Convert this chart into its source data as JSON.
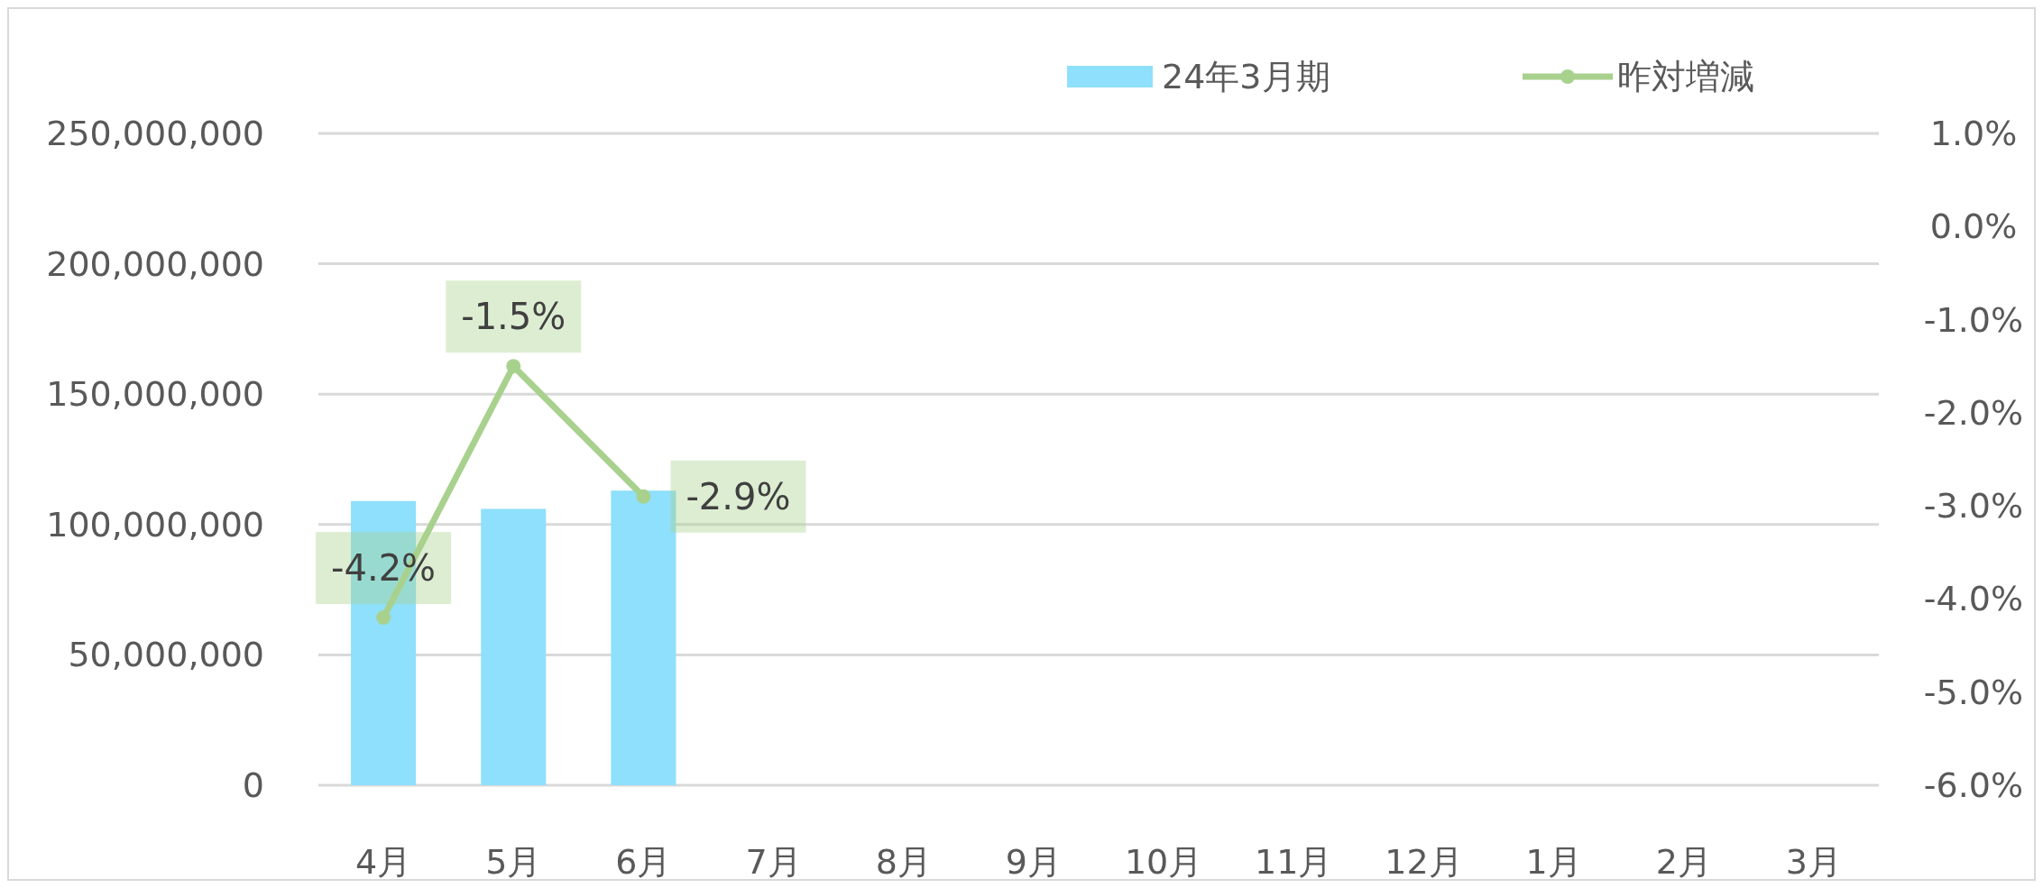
{
  "chart_data": {
    "type": "bar",
    "categories": [
      "4月",
      "5月",
      "6月",
      "7月",
      "8月",
      "9月",
      "10月",
      "11月",
      "12月",
      "1月",
      "2月",
      "3月"
    ],
    "series": [
      {
        "name": "24年3月期",
        "color": "#8ee0fc",
        "values": [
          109000000,
          106000000,
          113000000,
          null,
          null,
          null,
          null,
          null,
          null,
          null,
          null,
          null
        ]
      },
      {
        "name": "昨対増減",
        "type": "line",
        "axis": "y2",
        "color": "#a9d18e",
        "marker": "circle",
        "value_labels": [
          "-4.2%",
          "-1.5%",
          "-2.9%",
          null,
          null,
          null,
          null,
          null,
          null,
          null,
          null,
          null
        ],
        "values": [
          -4.2,
          -1.5,
          -2.9,
          null,
          null,
          null,
          null,
          null,
          null,
          null,
          null,
          null
        ]
      }
    ],
    "ylim": [
      0,
      250000000
    ],
    "yticks": [
      {
        "value": 0,
        "label": "0"
      },
      {
        "value": 50000000,
        "label": "50,000,000"
      },
      {
        "value": 100000000,
        "label": "100,000,000"
      },
      {
        "value": 150000000,
        "label": "150,000,000"
      },
      {
        "value": 200000000,
        "label": "200,000,000"
      },
      {
        "value": 250000000,
        "label": "250,000,000"
      }
    ],
    "y2lim": [
      -6,
      1
    ],
    "y2ticks": [
      {
        "value": -6,
        "label": "-6.0%"
      },
      {
        "value": -5,
        "label": "-5.0%"
      },
      {
        "value": -4,
        "label": "-4.0%"
      },
      {
        "value": -3,
        "label": "-3.0%"
      },
      {
        "value": -2,
        "label": "-2.0%"
      },
      {
        "value": -1,
        "label": "-1.0%"
      },
      {
        "value": 0,
        "label": "0.0%"
      },
      {
        "value": 1,
        "label": "1.0%"
      }
    ],
    "grid": "y",
    "legend": "top right"
  }
}
